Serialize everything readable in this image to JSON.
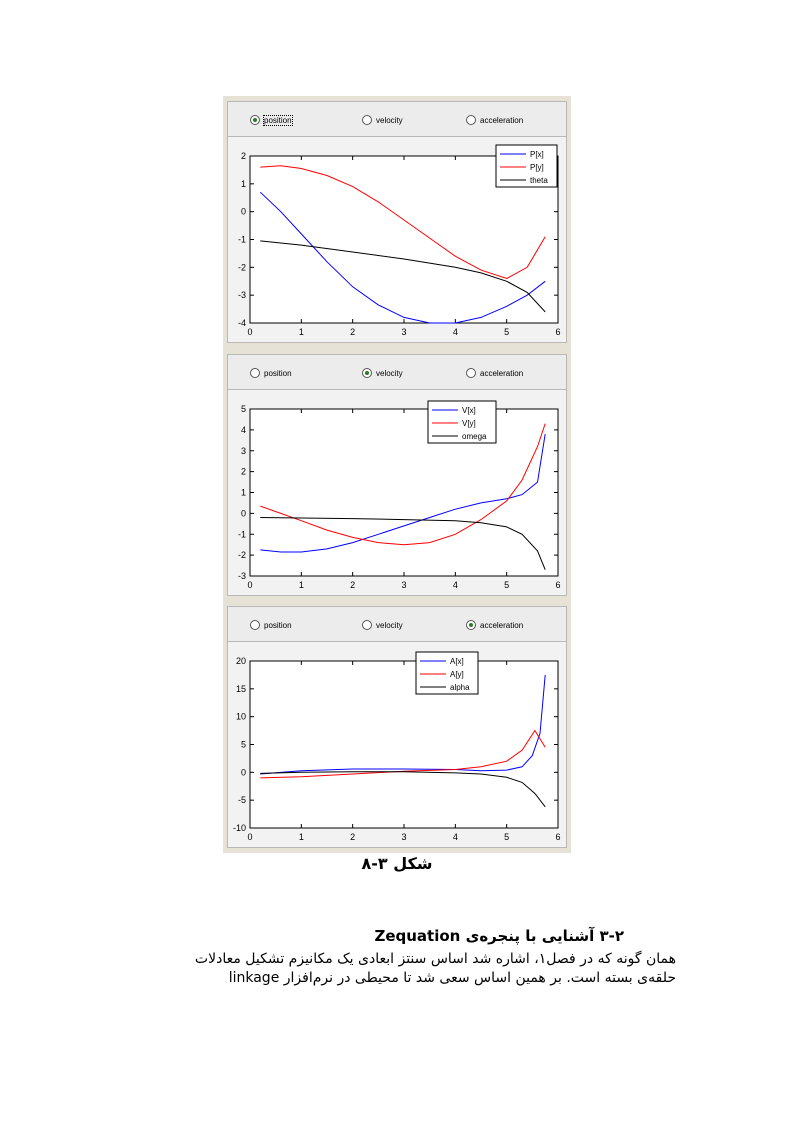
{
  "radio_options": [
    "position",
    "velocity",
    "acceleration"
  ],
  "panels": [
    {
      "selected": 0,
      "legend": [
        "P[x]",
        "P[y]",
        "theta"
      ],
      "colors": [
        "#0000ff",
        "#ff0000",
        "#000000"
      ],
      "ylim": [
        -4,
        2
      ],
      "yticks": [
        2,
        1,
        0,
        -1,
        -2,
        -3,
        -4
      ],
      "xlim": [
        0,
        6
      ],
      "xticks": [
        0,
        1,
        2,
        3,
        4,
        5,
        6
      ]
    },
    {
      "selected": 1,
      "legend": [
        "V[x]",
        "V[y]",
        "omega"
      ],
      "colors": [
        "#0000ff",
        "#ff0000",
        "#000000"
      ],
      "ylim": [
        -3,
        5
      ],
      "yticks": [
        5,
        4,
        3,
        2,
        1,
        0,
        -1,
        -2,
        -3
      ],
      "xlim": [
        0,
        6
      ],
      "xticks": [
        0,
        1,
        2,
        3,
        4,
        5,
        6
      ]
    },
    {
      "selected": 2,
      "legend": [
        "A[x]",
        "A[y]",
        "alpha"
      ],
      "colors": [
        "#0000ff",
        "#ff0000",
        "#000000"
      ],
      "ylim": [
        -10,
        20
      ],
      "yticks": [
        20,
        15,
        10,
        5,
        0,
        -5,
        -10
      ],
      "xlim": [
        0,
        6
      ],
      "xticks": [
        0,
        1,
        2,
        3,
        4,
        5,
        6
      ]
    }
  ],
  "chart_data": [
    {
      "type": "line",
      "series": [
        {
          "name": "P[x]",
          "x": [
            0.2,
            0.6,
            1.0,
            1.5,
            2.0,
            2.5,
            3.0,
            3.5,
            4.0,
            4.5,
            5.0,
            5.4,
            5.75
          ],
          "y": [
            0.7,
            0.0,
            -0.8,
            -1.8,
            -2.7,
            -3.35,
            -3.8,
            -4.0,
            -4.0,
            -3.8,
            -3.4,
            -3.0,
            -2.5
          ]
        },
        {
          "name": "P[y]",
          "x": [
            0.2,
            0.6,
            1.0,
            1.5,
            2.0,
            2.5,
            3.0,
            3.5,
            4.0,
            4.5,
            5.0,
            5.4,
            5.75
          ],
          "y": [
            1.6,
            1.65,
            1.55,
            1.3,
            0.9,
            0.35,
            -0.3,
            -0.95,
            -1.6,
            -2.1,
            -2.4,
            -2.0,
            -0.9
          ]
        },
        {
          "name": "theta",
          "x": [
            0.2,
            1.0,
            2.0,
            3.0,
            4.0,
            4.5,
            5.0,
            5.4,
            5.75
          ],
          "y": [
            -1.05,
            -1.2,
            -1.45,
            -1.7,
            -2.0,
            -2.2,
            -2.5,
            -2.9,
            -3.6
          ]
        }
      ],
      "xlim": [
        0,
        6
      ],
      "ylim": [
        -4,
        2
      ]
    },
    {
      "type": "line",
      "series": [
        {
          "name": "V[x]",
          "x": [
            0.2,
            0.6,
            1.0,
            1.5,
            2.0,
            2.5,
            3.0,
            3.5,
            4.0,
            4.5,
            5.0,
            5.3,
            5.6,
            5.75
          ],
          "y": [
            -1.75,
            -1.85,
            -1.85,
            -1.7,
            -1.4,
            -1.0,
            -0.6,
            -0.2,
            0.2,
            0.5,
            0.7,
            0.9,
            1.5,
            3.8
          ]
        },
        {
          "name": "V[y]",
          "x": [
            0.2,
            0.6,
            1.0,
            1.5,
            2.0,
            2.5,
            3.0,
            3.5,
            4.0,
            4.5,
            5.0,
            5.3,
            5.6,
            5.75
          ],
          "y": [
            0.35,
            0.0,
            -0.35,
            -0.8,
            -1.15,
            -1.4,
            -1.5,
            -1.4,
            -1.0,
            -0.3,
            0.6,
            1.6,
            3.2,
            4.3
          ]
        },
        {
          "name": "omega",
          "x": [
            0.2,
            1.0,
            2.0,
            3.0,
            4.0,
            4.5,
            5.0,
            5.3,
            5.6,
            5.75
          ],
          "y": [
            -0.2,
            -0.22,
            -0.25,
            -0.3,
            -0.35,
            -0.45,
            -0.65,
            -1.0,
            -1.8,
            -2.7
          ]
        }
      ],
      "xlim": [
        0,
        6
      ],
      "ylim": [
        -3,
        5
      ]
    },
    {
      "type": "line",
      "series": [
        {
          "name": "A[x]",
          "x": [
            0.2,
            1.0,
            2.0,
            3.0,
            4.0,
            4.5,
            5.0,
            5.3,
            5.5,
            5.65,
            5.75
          ],
          "y": [
            -0.3,
            0.3,
            0.6,
            0.6,
            0.5,
            0.3,
            0.4,
            1.0,
            3.0,
            7.0,
            17.5
          ]
        },
        {
          "name": "A[y]",
          "x": [
            0.2,
            1.0,
            2.0,
            3.0,
            4.0,
            4.5,
            5.0,
            5.3,
            5.55,
            5.75
          ],
          "y": [
            -1.0,
            -0.8,
            -0.3,
            0.2,
            0.5,
            1.0,
            2.0,
            4.0,
            7.5,
            4.5
          ]
        },
        {
          "name": "alpha",
          "x": [
            0.2,
            1.0,
            2.0,
            3.0,
            4.0,
            4.5,
            5.0,
            5.3,
            5.55,
            5.75
          ],
          "y": [
            -0.2,
            0.0,
            0.1,
            0.1,
            -0.1,
            -0.3,
            -0.9,
            -1.8,
            -3.8,
            -6.2
          ]
        }
      ],
      "xlim": [
        0,
        6
      ],
      "ylim": [
        -10,
        20
      ]
    }
  ],
  "caption": "شکل ۳-۸",
  "section": {
    "heading": "۳-۲ آشنایی با پنجره‌ی Zequation",
    "line1": "همان گونه که در فصل۱، اشاره شد اساس سنتز ابعادی یک مکانیزم تشکیل معادلات",
    "line2": "حلقه‌ی بسته است. بر همین اساس سعی شد تا محیطی در نرم‌افزار linkage"
  }
}
